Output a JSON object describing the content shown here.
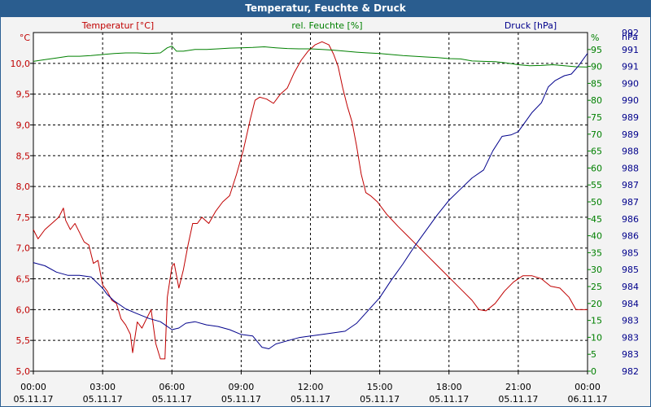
{
  "window": {
    "title": "Temperatur, Feuchte & Druck"
  },
  "colors": {
    "temperature": "#c00000",
    "humidity": "#008000",
    "pressure": "#00008b"
  },
  "chart_data": {
    "type": "line",
    "title": "Temperatur, Feuchte & Druck",
    "x_axis": {
      "time_labels": [
        "00:00",
        "03:00",
        "06:00",
        "09:00",
        "12:00",
        "15:00",
        "18:00",
        "21:00",
        "00:00"
      ],
      "date_labels": [
        "05.11.17",
        "05.11.17",
        "05.11.17",
        "05.11.17",
        "05.11.17",
        "05.11.17",
        "05.11.17",
        "05.11.17",
        "06.11.17"
      ],
      "range_hours": [
        0,
        24
      ]
    },
    "axes": {
      "temperature": {
        "label": "Temperatur [°C]",
        "unit": "°C",
        "range": [
          5.0,
          10.5
        ],
        "ticks": [
          "5,0",
          "5,5",
          "6,0",
          "6,5",
          "7,0",
          "7,5",
          "8,0",
          "8,5",
          "9,0",
          "9,5",
          "10,0"
        ]
      },
      "humidity": {
        "label": "rel. Feuchte [%]",
        "unit": "%",
        "range": [
          0,
          100
        ],
        "ticks": [
          "0",
          "5",
          "10",
          "15",
          "20",
          "25",
          "30",
          "35",
          "40",
          "45",
          "50",
          "55",
          "60",
          "65",
          "70",
          "75",
          "80",
          "85",
          "90",
          "95"
        ]
      },
      "pressure": {
        "label": "Druck [hPa]",
        "unit": "hPa",
        "range": [
          982.0,
          992.6
        ],
        "ticks": [
          "982",
          "983",
          "983",
          "983",
          "984",
          "984",
          "985",
          "985",
          "986",
          "986",
          "987",
          "987",
          "988",
          "988",
          "989",
          "989",
          "990",
          "990",
          "991",
          "991",
          "992"
        ]
      }
    },
    "series": [
      {
        "name": "Temperatur [°C]",
        "axis": "temperature",
        "points": [
          [
            0,
            7.3
          ],
          [
            0.2,
            7.15
          ],
          [
            0.5,
            7.3
          ],
          [
            0.8,
            7.4
          ],
          [
            1.1,
            7.5
          ],
          [
            1.3,
            7.65
          ],
          [
            1.4,
            7.45
          ],
          [
            1.6,
            7.3
          ],
          [
            1.8,
            7.4
          ],
          [
            2.0,
            7.25
          ],
          [
            2.2,
            7.1
          ],
          [
            2.4,
            7.05
          ],
          [
            2.6,
            6.75
          ],
          [
            2.8,
            6.8
          ],
          [
            3.0,
            6.4
          ],
          [
            3.2,
            6.3
          ],
          [
            3.4,
            6.15
          ],
          [
            3.6,
            6.1
          ],
          [
            3.8,
            5.85
          ],
          [
            4.0,
            5.75
          ],
          [
            4.2,
            5.6
          ],
          [
            4.3,
            5.3
          ],
          [
            4.5,
            5.8
          ],
          [
            4.7,
            5.7
          ],
          [
            4.9,
            5.85
          ],
          [
            5.1,
            6.0
          ],
          [
            5.3,
            5.45
          ],
          [
            5.5,
            5.2
          ],
          [
            5.7,
            5.2
          ],
          [
            5.8,
            6.2
          ],
          [
            6.0,
            6.7
          ],
          [
            6.1,
            6.75
          ],
          [
            6.3,
            6.35
          ],
          [
            6.5,
            6.65
          ],
          [
            6.7,
            7.05
          ],
          [
            6.9,
            7.4
          ],
          [
            7.1,
            7.4
          ],
          [
            7.3,
            7.5
          ],
          [
            7.6,
            7.4
          ],
          [
            7.9,
            7.6
          ],
          [
            8.2,
            7.75
          ],
          [
            8.5,
            7.85
          ],
          [
            8.8,
            8.2
          ],
          [
            9.1,
            8.6
          ],
          [
            9.4,
            9.1
          ],
          [
            9.6,
            9.4
          ],
          [
            9.8,
            9.45
          ],
          [
            10.1,
            9.42
          ],
          [
            10.4,
            9.35
          ],
          [
            10.7,
            9.5
          ],
          [
            11.0,
            9.6
          ],
          [
            11.3,
            9.85
          ],
          [
            11.6,
            10.05
          ],
          [
            11.9,
            10.2
          ],
          [
            12.2,
            10.3
          ],
          [
            12.5,
            10.35
          ],
          [
            12.8,
            10.3
          ],
          [
            13.0,
            10.15
          ],
          [
            13.2,
            9.95
          ],
          [
            13.4,
            9.6
          ],
          [
            13.6,
            9.3
          ],
          [
            13.8,
            9.05
          ],
          [
            14.0,
            8.65
          ],
          [
            14.2,
            8.2
          ],
          [
            14.4,
            7.9
          ],
          [
            14.6,
            7.85
          ],
          [
            14.9,
            7.75
          ],
          [
            15.3,
            7.55
          ],
          [
            15.8,
            7.35
          ],
          [
            16.2,
            7.2
          ],
          [
            16.6,
            7.05
          ],
          [
            17.0,
            6.9
          ],
          [
            17.4,
            6.75
          ],
          [
            17.8,
            6.6
          ],
          [
            18.2,
            6.45
          ],
          [
            18.6,
            6.3
          ],
          [
            19.0,
            6.15
          ],
          [
            19.3,
            6.0
          ],
          [
            19.6,
            5.98
          ],
          [
            20.0,
            6.1
          ],
          [
            20.4,
            6.3
          ],
          [
            20.8,
            6.45
          ],
          [
            21.2,
            6.55
          ],
          [
            21.6,
            6.55
          ],
          [
            22.0,
            6.5
          ],
          [
            22.4,
            6.38
          ],
          [
            22.8,
            6.35
          ],
          [
            23.2,
            6.2
          ],
          [
            23.5,
            6.0
          ],
          [
            24.0,
            6.0
          ]
        ]
      },
      {
        "name": "rel. Feuchte [%]",
        "axis": "humidity",
        "points": [
          [
            0,
            91.5
          ],
          [
            0.5,
            92
          ],
          [
            1.0,
            92.5
          ],
          [
            1.5,
            93
          ],
          [
            2.0,
            93
          ],
          [
            2.5,
            93.2
          ],
          [
            3.0,
            93.5
          ],
          [
            3.5,
            93.8
          ],
          [
            4.0,
            94
          ],
          [
            4.5,
            94
          ],
          [
            5.0,
            93.8
          ],
          [
            5.5,
            94
          ],
          [
            5.8,
            95.5
          ],
          [
            6.0,
            96
          ],
          [
            6.2,
            94.5
          ],
          [
            6.5,
            94.5
          ],
          [
            7.0,
            95
          ],
          [
            7.5,
            95
          ],
          [
            8.0,
            95.2
          ],
          [
            8.5,
            95.4
          ],
          [
            9.0,
            95.5
          ],
          [
            9.5,
            95.6
          ],
          [
            10.0,
            95.8
          ],
          [
            10.5,
            95.5
          ],
          [
            11.0,
            95.3
          ],
          [
            11.5,
            95.2
          ],
          [
            12.0,
            95.2
          ],
          [
            12.5,
            95.0
          ],
          [
            13.0,
            94.8
          ],
          [
            13.5,
            94.5
          ],
          [
            14.0,
            94.2
          ],
          [
            14.5,
            94.0
          ],
          [
            15.0,
            93.8
          ],
          [
            15.5,
            93.5
          ],
          [
            16.0,
            93.2
          ],
          [
            16.5,
            93.0
          ],
          [
            17.0,
            92.8
          ],
          [
            17.5,
            92.6
          ],
          [
            18.0,
            92.3
          ],
          [
            18.5,
            92.2
          ],
          [
            19.0,
            91.6
          ],
          [
            19.5,
            91.5
          ],
          [
            20.0,
            91.4
          ],
          [
            20.5,
            91.0
          ],
          [
            21.0,
            90.5
          ],
          [
            21.5,
            90.2
          ],
          [
            22.0,
            90.3
          ],
          [
            22.5,
            90.5
          ],
          [
            23.0,
            90.2
          ],
          [
            23.5,
            89.9
          ],
          [
            24.0,
            89.8
          ]
        ]
      },
      {
        "name": "Druck [hPa]",
        "axis": "pressure",
        "points": [
          [
            0,
            985.4
          ],
          [
            0.5,
            985.3
          ],
          [
            1.0,
            985.1
          ],
          [
            1.5,
            985.0
          ],
          [
            2.0,
            985.0
          ],
          [
            2.5,
            984.95
          ],
          [
            3.0,
            984.6
          ],
          [
            3.2,
            984.4
          ],
          [
            3.5,
            984.2
          ],
          [
            3.8,
            984.05
          ],
          [
            4.0,
            983.95
          ],
          [
            4.5,
            983.8
          ],
          [
            5.0,
            983.65
          ],
          [
            5.5,
            983.55
          ],
          [
            6.0,
            983.3
          ],
          [
            6.3,
            983.35
          ],
          [
            6.6,
            983.5
          ],
          [
            7.0,
            983.55
          ],
          [
            7.5,
            983.45
          ],
          [
            8.0,
            983.4
          ],
          [
            8.5,
            983.3
          ],
          [
            9.0,
            983.15
          ],
          [
            9.5,
            983.1
          ],
          [
            9.9,
            982.75
          ],
          [
            10.2,
            982.7
          ],
          [
            10.5,
            982.85
          ],
          [
            11.0,
            982.95
          ],
          [
            11.5,
            983.05
          ],
          [
            12.0,
            983.1
          ],
          [
            12.5,
            983.15
          ],
          [
            13.0,
            983.2
          ],
          [
            13.5,
            983.25
          ],
          [
            14.0,
            983.5
          ],
          [
            14.5,
            983.9
          ],
          [
            15.0,
            984.3
          ],
          [
            15.5,
            984.85
          ],
          [
            16.0,
            985.35
          ],
          [
            16.5,
            985.9
          ],
          [
            17.0,
            986.4
          ],
          [
            17.5,
            986.9
          ],
          [
            18.0,
            987.35
          ],
          [
            18.5,
            987.7
          ],
          [
            19.0,
            988.05
          ],
          [
            19.5,
            988.3
          ],
          [
            19.9,
            988.9
          ],
          [
            20.3,
            989.35
          ],
          [
            20.7,
            989.4
          ],
          [
            21.0,
            989.5
          ],
          [
            21.3,
            989.8
          ],
          [
            21.6,
            990.1
          ],
          [
            22.0,
            990.4
          ],
          [
            22.3,
            990.9
          ],
          [
            22.6,
            991.1
          ],
          [
            23.0,
            991.25
          ],
          [
            23.3,
            991.3
          ],
          [
            23.6,
            991.55
          ],
          [
            24.0,
            991.95
          ]
        ]
      }
    ],
    "grid": true
  }
}
